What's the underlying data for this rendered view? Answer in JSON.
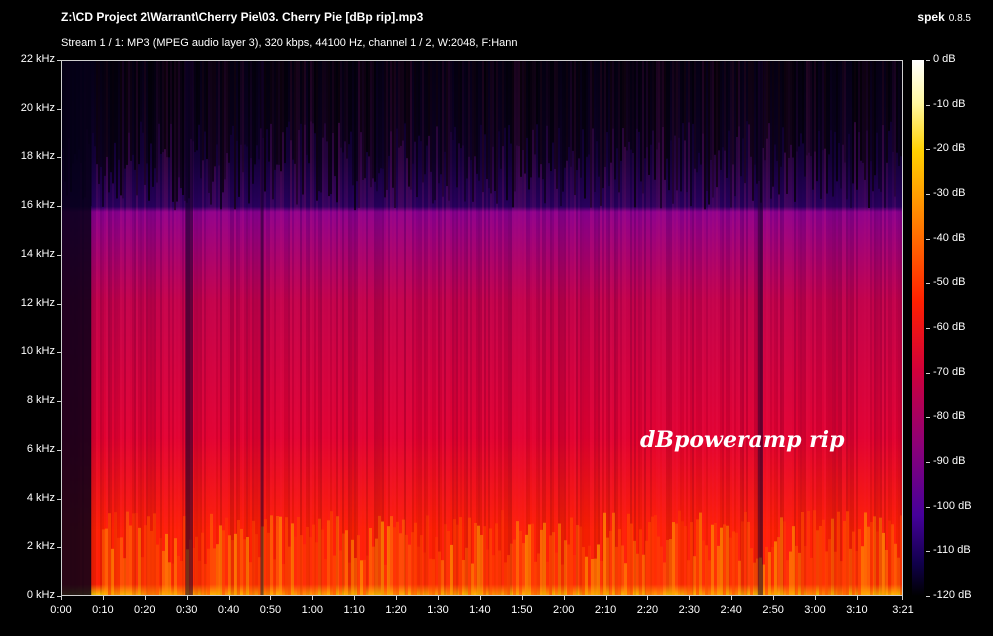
{
  "header": {
    "file_title": "Z:\\CD Project 2\\Warrant\\Cherry Pie\\03. Cherry Pie [dBp rip].mp3",
    "app_name": "spek",
    "app_version": "0.8.5",
    "stream_info": "Stream 1 / 1: MP3 (MPEG audio layer 3), 320 kbps, 44100 Hz, channel 1 / 2, W:2048, F:Hann"
  },
  "watermark": "dBpoweramp rip",
  "chart_data": {
    "type": "heatmap",
    "y_ticks": [
      "22 kHz",
      "20 kHz",
      "18 kHz",
      "16 kHz",
      "14 kHz",
      "12 kHz",
      "10 kHz",
      "8 kHz",
      "6 kHz",
      "4 kHz",
      "2 kHz",
      "0 kHz"
    ],
    "x_ticks": [
      "0:00",
      "0:10",
      "0:20",
      "0:30",
      "0:40",
      "0:50",
      "1:00",
      "1:10",
      "1:20",
      "1:30",
      "1:40",
      "1:50",
      "2:00",
      "2:10",
      "2:20",
      "2:30",
      "2:40",
      "2:50",
      "3:00",
      "3:10",
      "3:21"
    ],
    "db_ticks": [
      "0 dB",
      "-10 dB",
      "-20 dB",
      "-30 dB",
      "-40 dB",
      "-50 dB",
      "-60 dB",
      "-70 dB",
      "-80 dB",
      "-90 dB",
      "-100 dB",
      "-110 dB",
      "-120 dB"
    ],
    "ylim": [
      0,
      22
    ],
    "xlim": [
      0,
      201
    ],
    "clim": [
      -120,
      0
    ],
    "lowpass_cutoff_khz": 16,
    "colors": {
      "low": "#000000",
      "mid_low": "#3a0090",
      "mid": "#c0004a",
      "mid_high": "#ff2000",
      "high": "#ffd000",
      "peak": "#ffffff"
    }
  }
}
